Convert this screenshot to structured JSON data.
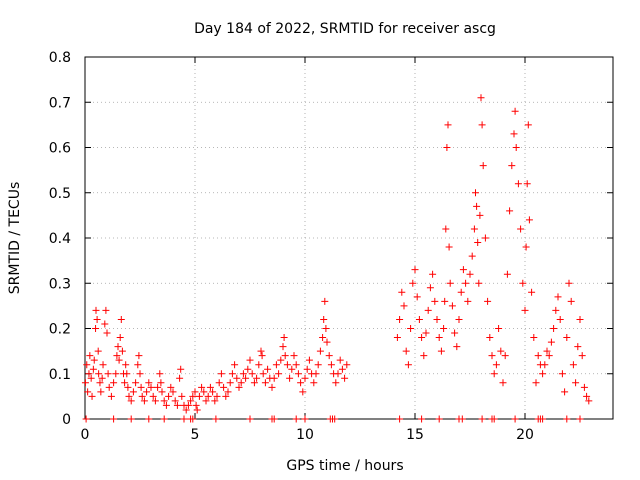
{
  "chart_data": {
    "type": "scatter",
    "title": "Day 184 of 2022, SRMTID for receiver ascg",
    "xlabel": "GPS time / hours",
    "ylabel": "SRMTID / TECUs",
    "xlim": [
      0,
      24
    ],
    "ylim": [
      0,
      0.8
    ],
    "x_ticks": [
      0,
      5,
      10,
      15,
      20
    ],
    "y_ticks": [
      0,
      0.1,
      0.2,
      0.3,
      0.4,
      0.5,
      0.6,
      0.7,
      0.8
    ],
    "x_tick_labels": [
      "0",
      "5",
      "10",
      "15",
      "20"
    ],
    "y_tick_labels": [
      "0",
      "0.1",
      "0.2",
      "0.3",
      "0.4",
      "0.5",
      "0.6",
      "0.7",
      "0.8"
    ],
    "grid": true,
    "marker": "+",
    "color": "#ff0000",
    "series": [
      {
        "name": "SRMTID",
        "points": [
          [
            0.02,
            0.08
          ],
          [
            0.08,
            0.12
          ],
          [
            0.12,
            0.06
          ],
          [
            0.18,
            0.1
          ],
          [
            0.22,
            0.14
          ],
          [
            0.28,
            0.09
          ],
          [
            0.32,
            0.05
          ],
          [
            0.38,
            0.11
          ],
          [
            0.42,
            0.13
          ],
          [
            0.48,
            0.2
          ],
          [
            0.5,
            0.24
          ],
          [
            0.55,
            0.22
          ],
          [
            0.6,
            0.15
          ],
          [
            0.62,
            0.1
          ],
          [
            0.68,
            0.08
          ],
          [
            0.72,
            0.06
          ],
          [
            0.78,
            0.09
          ],
          [
            0.82,
            0.12
          ],
          [
            0.9,
            0.21
          ],
          [
            0.95,
            0.24
          ],
          [
            1.0,
            0.19
          ],
          [
            1.05,
            0.1
          ],
          [
            1.1,
            0.07
          ],
          [
            1.2,
            0.05
          ],
          [
            1.3,
            0.08
          ],
          [
            1.4,
            0.1
          ],
          [
            1.45,
            0.14
          ],
          [
            1.5,
            0.16
          ],
          [
            1.55,
            0.13
          ],
          [
            1.6,
            0.18
          ],
          [
            1.65,
            0.22
          ],
          [
            1.7,
            0.15
          ],
          [
            1.75,
            0.1
          ],
          [
            1.8,
            0.08
          ],
          [
            1.85,
            0.12
          ],
          [
            1.9,
            0.1
          ],
          [
            1.95,
            0.07
          ],
          [
            2.0,
            0.05
          ],
          [
            2.1,
            0.04
          ],
          [
            2.2,
            0.06
          ],
          [
            2.3,
            0.08
          ],
          [
            2.4,
            0.12
          ],
          [
            2.45,
            0.14
          ],
          [
            2.5,
            0.1
          ],
          [
            2.55,
            0.07
          ],
          [
            2.6,
            0.05
          ],
          [
            2.7,
            0.04
          ],
          [
            2.8,
            0.06
          ],
          [
            2.9,
            0.08
          ],
          [
            3.0,
            0.07
          ],
          [
            3.1,
            0.05
          ],
          [
            3.2,
            0.04
          ],
          [
            3.3,
            0.07
          ],
          [
            3.4,
            0.1
          ],
          [
            3.45,
            0.08
          ],
          [
            3.5,
            0.06
          ],
          [
            3.6,
            0.04
          ],
          [
            3.7,
            0.03
          ],
          [
            3.8,
            0.05
          ],
          [
            3.9,
            0.07
          ],
          [
            4.0,
            0.06
          ],
          [
            4.1,
            0.04
          ],
          [
            4.2,
            0.03
          ],
          [
            4.3,
            0.09
          ],
          [
            4.35,
            0.11
          ],
          [
            4.4,
            0.05
          ],
          [
            4.5,
            0.03
          ],
          [
            4.6,
            0.02
          ],
          [
            4.7,
            0.03
          ],
          [
            4.8,
            0.04
          ],
          [
            4.9,
            0.05
          ],
          [
            5.0,
            0.06
          ],
          [
            5.05,
            0.03
          ],
          [
            5.1,
            0.02
          ],
          [
            5.2,
            0.05
          ],
          [
            5.3,
            0.07
          ],
          [
            5.4,
            0.06
          ],
          [
            5.5,
            0.04
          ],
          [
            5.6,
            0.05
          ],
          [
            5.7,
            0.07
          ],
          [
            5.8,
            0.06
          ],
          [
            5.9,
            0.04
          ],
          [
            6.0,
            0.05
          ],
          [
            6.1,
            0.08
          ],
          [
            6.2,
            0.1
          ],
          [
            6.3,
            0.07
          ],
          [
            6.4,
            0.05
          ],
          [
            6.5,
            0.06
          ],
          [
            6.6,
            0.08
          ],
          [
            6.7,
            0.1
          ],
          [
            6.8,
            0.12
          ],
          [
            6.9,
            0.09
          ],
          [
            7.0,
            0.07
          ],
          [
            7.1,
            0.08
          ],
          [
            7.2,
            0.1
          ],
          [
            7.3,
            0.09
          ],
          [
            7.4,
            0.11
          ],
          [
            7.5,
            0.13
          ],
          [
            7.6,
            0.1
          ],
          [
            7.7,
            0.08
          ],
          [
            7.8,
            0.09
          ],
          [
            7.9,
            0.12
          ],
          [
            8.0,
            0.15
          ],
          [
            8.05,
            0.14
          ],
          [
            8.1,
            0.1
          ],
          [
            8.2,
            0.08
          ],
          [
            8.3,
            0.11
          ],
          [
            8.4,
            0.09
          ],
          [
            8.5,
            0.07
          ],
          [
            8.6,
            0.09
          ],
          [
            8.7,
            0.12
          ],
          [
            8.8,
            0.1
          ],
          [
            8.9,
            0.13
          ],
          [
            9.0,
            0.16
          ],
          [
            9.05,
            0.18
          ],
          [
            9.1,
            0.14
          ],
          [
            9.2,
            0.12
          ],
          [
            9.3,
            0.09
          ],
          [
            9.4,
            0.11
          ],
          [
            9.5,
            0.14
          ],
          [
            9.6,
            0.12
          ],
          [
            9.7,
            0.1
          ],
          [
            9.8,
            0.08
          ],
          [
            9.9,
            0.06
          ],
          [
            10.0,
            0.09
          ],
          [
            10.1,
            0.11
          ],
          [
            10.2,
            0.13
          ],
          [
            10.3,
            0.1
          ],
          [
            10.4,
            0.08
          ],
          [
            10.5,
            0.1
          ],
          [
            10.6,
            0.12
          ],
          [
            10.7,
            0.15
          ],
          [
            10.8,
            0.18
          ],
          [
            10.85,
            0.22
          ],
          [
            10.9,
            0.26
          ],
          [
            10.95,
            0.2
          ],
          [
            11.0,
            0.17
          ],
          [
            11.1,
            0.14
          ],
          [
            11.2,
            0.12
          ],
          [
            11.3,
            0.1
          ],
          [
            11.4,
            0.08
          ],
          [
            11.5,
            0.1
          ],
          [
            11.6,
            0.13
          ],
          [
            11.7,
            0.11
          ],
          [
            11.8,
            0.09
          ],
          [
            11.9,
            0.12
          ],
          [
            14.2,
            0.18
          ],
          [
            14.3,
            0.22
          ],
          [
            14.4,
            0.28
          ],
          [
            14.5,
            0.25
          ],
          [
            14.6,
            0.15
          ],
          [
            14.7,
            0.12
          ],
          [
            14.8,
            0.2
          ],
          [
            14.9,
            0.3
          ],
          [
            15.0,
            0.33
          ],
          [
            15.1,
            0.27
          ],
          [
            15.2,
            0.22
          ],
          [
            15.3,
            0.18
          ],
          [
            15.4,
            0.14
          ],
          [
            15.5,
            0.19
          ],
          [
            15.6,
            0.24
          ],
          [
            15.7,
            0.29
          ],
          [
            15.8,
            0.32
          ],
          [
            15.9,
            0.26
          ],
          [
            16.0,
            0.22
          ],
          [
            16.1,
            0.18
          ],
          [
            16.2,
            0.15
          ],
          [
            16.3,
            0.2
          ],
          [
            16.35,
            0.26
          ],
          [
            16.4,
            0.42
          ],
          [
            16.45,
            0.6
          ],
          [
            16.5,
            0.65
          ],
          [
            16.55,
            0.38
          ],
          [
            16.6,
            0.3
          ],
          [
            16.7,
            0.25
          ],
          [
            16.8,
            0.19
          ],
          [
            16.9,
            0.16
          ],
          [
            17.0,
            0.22
          ],
          [
            17.1,
            0.28
          ],
          [
            17.2,
            0.33
          ],
          [
            17.3,
            0.3
          ],
          [
            17.4,
            0.26
          ],
          [
            17.5,
            0.32
          ],
          [
            17.6,
            0.36
          ],
          [
            17.7,
            0.42
          ],
          [
            17.75,
            0.5
          ],
          [
            17.8,
            0.47
          ],
          [
            17.85,
            0.39
          ],
          [
            17.9,
            0.3
          ],
          [
            17.95,
            0.45
          ],
          [
            18.0,
            0.71
          ],
          [
            18.05,
            0.65
          ],
          [
            18.1,
            0.56
          ],
          [
            18.2,
            0.4
          ],
          [
            18.3,
            0.26
          ],
          [
            18.4,
            0.18
          ],
          [
            18.5,
            0.14
          ],
          [
            18.6,
            0.1
          ],
          [
            18.7,
            0.12
          ],
          [
            18.8,
            0.2
          ],
          [
            18.9,
            0.15
          ],
          [
            19.0,
            0.08
          ],
          [
            19.1,
            0.14
          ],
          [
            19.2,
            0.32
          ],
          [
            19.3,
            0.46
          ],
          [
            19.4,
            0.56
          ],
          [
            19.5,
            0.63
          ],
          [
            19.55,
            0.68
          ],
          [
            19.6,
            0.6
          ],
          [
            19.7,
            0.52
          ],
          [
            19.8,
            0.42
          ],
          [
            19.9,
            0.3
          ],
          [
            20.0,
            0.24
          ],
          [
            20.05,
            0.38
          ],
          [
            20.1,
            0.52
          ],
          [
            20.15,
            0.65
          ],
          [
            20.2,
            0.44
          ],
          [
            20.3,
            0.28
          ],
          [
            20.4,
            0.18
          ],
          [
            20.5,
            0.08
          ],
          [
            20.6,
            0.14
          ],
          [
            20.7,
            0.12
          ],
          [
            20.8,
            0.1
          ],
          [
            20.9,
            0.12
          ],
          [
            21.0,
            0.15
          ],
          [
            21.1,
            0.14
          ],
          [
            21.2,
            0.17
          ],
          [
            21.3,
            0.2
          ],
          [
            21.4,
            0.24
          ],
          [
            21.5,
            0.27
          ],
          [
            21.6,
            0.22
          ],
          [
            21.7,
            0.1
          ],
          [
            21.8,
            0.06
          ],
          [
            21.9,
            0.18
          ],
          [
            22.0,
            0.3
          ],
          [
            22.1,
            0.26
          ],
          [
            22.2,
            0.12
          ],
          [
            22.3,
            0.08
          ],
          [
            22.4,
            0.16
          ],
          [
            22.5,
            0.22
          ],
          [
            22.6,
            0.14
          ],
          [
            22.7,
            0.07
          ],
          [
            22.8,
            0.05
          ],
          [
            22.9,
            0.04
          ]
        ]
      }
    ],
    "baseline_x": [
      0.05,
      1.3,
      2.1,
      2.9,
      3.6,
      4.5,
      4.8,
      4.9,
      5.95,
      7.5,
      8.5,
      8.6,
      9.6,
      10.0,
      11.15,
      11.25,
      11.35,
      14.3,
      15.3,
      16.1,
      17.0,
      17.15,
      18.05,
      18.5,
      18.6,
      19.55,
      20.6,
      20.7,
      20.8,
      21.9,
      22.5
    ]
  }
}
